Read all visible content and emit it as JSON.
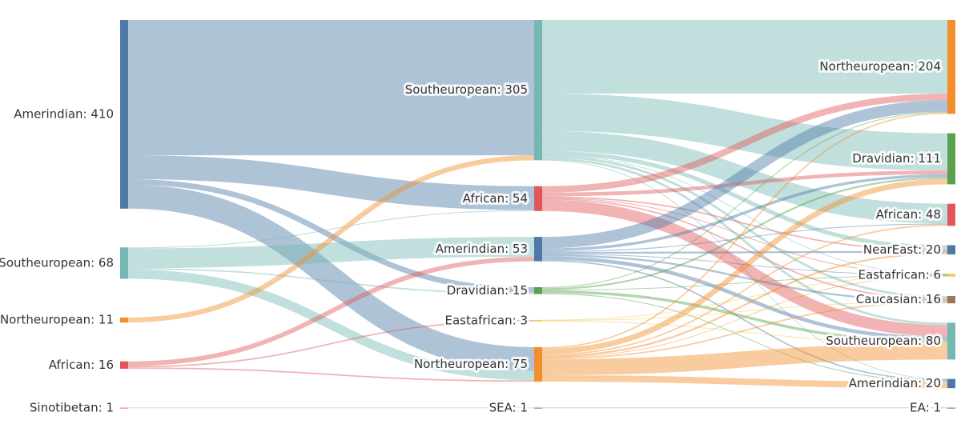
{
  "chart_data": {
    "type": "sankey",
    "nodes": [
      {
        "label": "Amerindian: 410",
        "value": 410,
        "color": "#4e79a7"
      },
      {
        "label": "Southeuropean: 68",
        "value": 68,
        "color": "#76b7b2"
      },
      {
        "label": "Northeuropean: 11",
        "value": 11,
        "color": "#f28e2b"
      },
      {
        "label": "African: 16",
        "value": 16,
        "color": "#e15759"
      },
      {
        "label": "Sinotibetan: 1",
        "value": 1,
        "color": "#e8a0a8"
      },
      {
        "label": "Southeuropean: 305",
        "value": 305,
        "color": "#76b7b2"
      },
      {
        "label": "African: 54",
        "value": 54,
        "color": "#e15759"
      },
      {
        "label": "Amerindian: 53",
        "value": 53,
        "color": "#4e79a7"
      },
      {
        "label": "Dravidian: 15",
        "value": 15,
        "color": "#59a14f"
      },
      {
        "label": "Eastafrican: 3",
        "value": 3,
        "color": "#edc948"
      },
      {
        "label": "Northeuropean: 75",
        "value": 75,
        "color": "#f28e2b"
      },
      {
        "label": "SEA: 1",
        "value": 1,
        "color": "#9a9a9a"
      },
      {
        "label": "Northeuropean: 204",
        "value": 204,
        "color": "#f28e2b"
      },
      {
        "label": "Dravidian: 111",
        "value": 111,
        "color": "#59a14f"
      },
      {
        "label": "African: 48",
        "value": 48,
        "color": "#e15759"
      },
      {
        "label": "NearEast: 20",
        "value": 20,
        "color": "#4e79a7"
      },
      {
        "label": "Eastafrican: 6",
        "value": 6,
        "color": "#edc948"
      },
      {
        "label": "Caucasian: 16",
        "value": 16,
        "color": "#9c755f"
      },
      {
        "label": "Southeuropean: 80",
        "value": 80,
        "color": "#76b7b2"
      },
      {
        "label": "Amerindian: 20",
        "value": 20,
        "color": "#4e79a7"
      },
      {
        "label": "EA: 1",
        "value": 1,
        "color": "#9a9a9a"
      }
    ],
    "links": [
      {
        "source": 0,
        "target": 5,
        "value": 294
      },
      {
        "source": 0,
        "target": 6,
        "value": 52
      },
      {
        "source": 0,
        "target": 8,
        "value": 12
      },
      {
        "source": 0,
        "target": 10,
        "value": 52
      },
      {
        "source": 1,
        "target": 6,
        "value": 2
      },
      {
        "source": 1,
        "target": 7,
        "value": 43
      },
      {
        "source": 1,
        "target": 8,
        "value": 3
      },
      {
        "source": 1,
        "target": 10,
        "value": 20
      },
      {
        "source": 2,
        "target": 5,
        "value": 11
      },
      {
        "source": 3,
        "target": 7,
        "value": 10
      },
      {
        "source": 3,
        "target": 9,
        "value": 3
      },
      {
        "source": 3,
        "target": 10,
        "value": 3
      },
      {
        "source": 4,
        "target": 11,
        "value": 1
      },
      {
        "source": 5,
        "target": 12,
        "value": 160
      },
      {
        "source": 5,
        "target": 13,
        "value": 81
      },
      {
        "source": 5,
        "target": 14,
        "value": 43
      },
      {
        "source": 5,
        "target": 15,
        "value": 9
      },
      {
        "source": 5,
        "target": 16,
        "value": 1
      },
      {
        "source": 5,
        "target": 17,
        "value": 5
      },
      {
        "source": 5,
        "target": 18,
        "value": 5
      },
      {
        "source": 5,
        "target": 19,
        "value": 1
      },
      {
        "source": 6,
        "target": 12,
        "value": 14
      },
      {
        "source": 6,
        "target": 13,
        "value": 8
      },
      {
        "source": 6,
        "target": 15,
        "value": 3
      },
      {
        "source": 6,
        "target": 16,
        "value": 1
      },
      {
        "source": 6,
        "target": 17,
        "value": 3
      },
      {
        "source": 6,
        "target": 18,
        "value": 25
      },
      {
        "source": 7,
        "target": 12,
        "value": 25
      },
      {
        "source": 7,
        "target": 13,
        "value": 6
      },
      {
        "source": 7,
        "target": 14,
        "value": 2
      },
      {
        "source": 7,
        "target": 15,
        "value": 4
      },
      {
        "source": 7,
        "target": 16,
        "value": 1
      },
      {
        "source": 7,
        "target": 17,
        "value": 4
      },
      {
        "source": 7,
        "target": 18,
        "value": 8
      },
      {
        "source": 7,
        "target": 19,
        "value": 3
      },
      {
        "source": 8,
        "target": 12,
        "value": 2
      },
      {
        "source": 8,
        "target": 13,
        "value": 4
      },
      {
        "source": 8,
        "target": 16,
        "value": 1
      },
      {
        "source": 8,
        "target": 18,
        "value": 6
      },
      {
        "source": 8,
        "target": 19,
        "value": 2
      },
      {
        "source": 9,
        "target": 16,
        "value": 1
      },
      {
        "source": 9,
        "target": 17,
        "value": 1
      },
      {
        "source": 9,
        "target": 18,
        "value": 1
      },
      {
        "source": 10,
        "target": 12,
        "value": 3
      },
      {
        "source": 10,
        "target": 13,
        "value": 12
      },
      {
        "source": 10,
        "target": 14,
        "value": 3
      },
      {
        "source": 10,
        "target": 15,
        "value": 4
      },
      {
        "source": 10,
        "target": 16,
        "value": 1
      },
      {
        "source": 10,
        "target": 17,
        "value": 3
      },
      {
        "source": 10,
        "target": 18,
        "value": 35
      },
      {
        "source": 10,
        "target": 19,
        "value": 14
      },
      {
        "source": 11,
        "target": 20,
        "value": 1
      }
    ]
  }
}
